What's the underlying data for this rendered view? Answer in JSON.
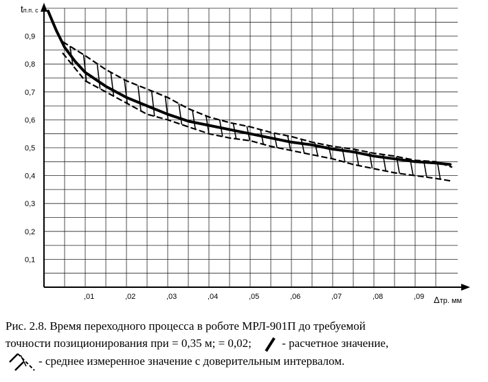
{
  "chart_data": {
    "type": "line",
    "ylabel": "t",
    "ylabel_sub": "п.п. с",
    "xlabel": "Δ",
    "xlabel_sub": "тр. мм",
    "xlim": [
      0,
      0.0995
    ],
    "ylim": [
      0,
      1.0
    ],
    "x_ticks": [
      0.01,
      0.02,
      0.03,
      0.04,
      0.05,
      0.06,
      0.07,
      0.08,
      0.09
    ],
    "x_tick_labels": [
      ",01",
      ",02",
      ",03",
      ",04",
      ",05",
      ",06",
      ",07",
      ",08",
      ",09"
    ],
    "y_ticks": [
      0.1,
      0.2,
      0.3,
      0.4,
      0.5,
      0.6,
      0.7,
      0.8,
      0.9
    ],
    "y_tick_labels": [
      "0,1",
      "0,2",
      "0,3",
      "0,4",
      "0,5",
      "0,6",
      "0,7",
      "0,8",
      "0,9"
    ],
    "grid": true,
    "series": [
      {
        "role": "calculated",
        "x": [
          0.001,
          0.003,
          0.005,
          0.0075,
          0.01,
          0.015,
          0.02,
          0.025,
          0.03,
          0.035,
          0.04,
          0.045,
          0.05,
          0.055,
          0.06,
          0.065,
          0.07,
          0.075,
          0.08,
          0.085,
          0.09,
          0.095,
          0.0985
        ],
        "y": [
          0.99,
          0.92,
          0.86,
          0.81,
          0.77,
          0.72,
          0.68,
          0.65,
          0.62,
          0.595,
          0.58,
          0.565,
          0.55,
          0.535,
          0.52,
          0.51,
          0.495,
          0.485,
          0.47,
          0.46,
          0.45,
          0.445,
          0.44
        ]
      },
      {
        "role": "measured-upper",
        "x": [
          0.0045,
          0.01,
          0.015,
          0.02,
          0.025,
          0.03,
          0.035,
          0.04,
          0.045,
          0.05,
          0.055,
          0.06,
          0.065,
          0.07,
          0.075,
          0.08,
          0.085,
          0.09,
          0.095,
          0.099
        ],
        "y": [
          0.88,
          0.83,
          0.78,
          0.74,
          0.71,
          0.68,
          0.64,
          0.61,
          0.59,
          0.575,
          0.555,
          0.54,
          0.52,
          0.505,
          0.495,
          0.48,
          0.47,
          0.455,
          0.45,
          0.43
        ]
      },
      {
        "role": "measured-lower",
        "x": [
          0.0045,
          0.01,
          0.015,
          0.02,
          0.025,
          0.03,
          0.035,
          0.04,
          0.045,
          0.05,
          0.055,
          0.06,
          0.065,
          0.07,
          0.075,
          0.08,
          0.085,
          0.09,
          0.095,
          0.099
        ],
        "y": [
          0.84,
          0.74,
          0.7,
          0.66,
          0.62,
          0.6,
          0.575,
          0.55,
          0.535,
          0.525,
          0.505,
          0.49,
          0.475,
          0.46,
          0.44,
          0.425,
          0.41,
          0.4,
          0.39,
          0.38
        ]
      }
    ]
  },
  "caption": {
    "line1": "Рис. 2.8. Время переходного процесса в роботе МРЛ-901П до требуемой",
    "line2_text": "точности позиционирования при = 0,35 м;  = 0,02;",
    "legend_calc": "- расчетное значение,",
    "legend_measured": "- среднее измеренное значение с доверительным интервалом."
  }
}
